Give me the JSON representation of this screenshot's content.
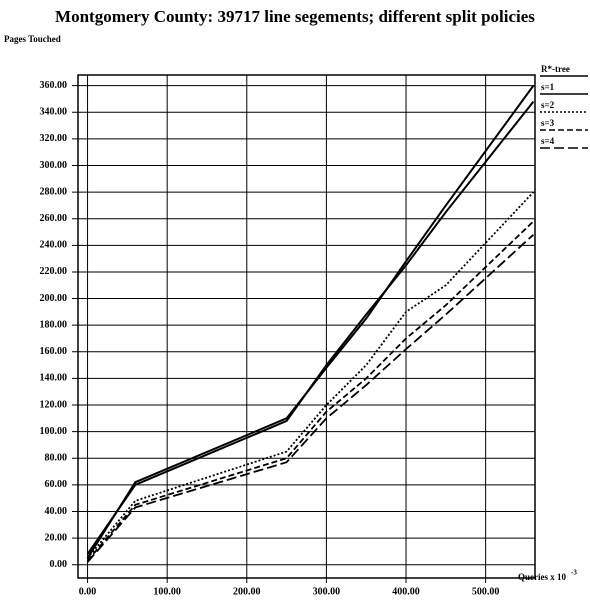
{
  "chart_data": {
    "type": "line",
    "title": "Montgomery County: 39717 line segements; different split policies",
    "ylabel": "Pages Touched",
    "xlabel": "Queries x 10",
    "xlabel_exp": "-3",
    "x": [
      0,
      60,
      250,
      300,
      350,
      400,
      450,
      560
    ],
    "series": [
      {
        "name": "R*-tree",
        "color": "#000000",
        "style": "solid",
        "values": [
          5,
          62,
          110,
          148,
          185,
          228,
          270,
          360
        ]
      },
      {
        "name": "s=1",
        "color": "#000000",
        "style": "solid",
        "values": [
          8,
          60,
          108,
          150,
          188,
          225,
          265,
          348
        ]
      },
      {
        "name": "s=2",
        "color": "#000000",
        "style": "dotted",
        "values": [
          5,
          48,
          85,
          120,
          150,
          190,
          210,
          280
        ]
      },
      {
        "name": "s=3",
        "color": "#000000",
        "style": "dashed",
        "values": [
          3,
          45,
          80,
          115,
          140,
          170,
          195,
          258
        ]
      },
      {
        "name": "s=4",
        "color": "#000000",
        "style": "longdash",
        "values": [
          2,
          43,
          77,
          110,
          135,
          162,
          188,
          248
        ]
      }
    ],
    "xlim": [
      -12,
      562
    ],
    "ylim": [
      -10,
      368
    ],
    "xticks": [
      {
        "value": 0,
        "label": "0.00"
      },
      {
        "value": 100,
        "label": "100.00"
      },
      {
        "value": 200,
        "label": "200.00"
      },
      {
        "value": 300,
        "label": "300.00"
      },
      {
        "value": 400,
        "label": "400.00"
      },
      {
        "value": 500,
        "label": "500.00"
      }
    ],
    "yticks": [
      {
        "value": 0,
        "label": "0.00"
      },
      {
        "value": 20,
        "label": "20.00"
      },
      {
        "value": 40,
        "label": "40.00"
      },
      {
        "value": 60,
        "label": "60.00"
      },
      {
        "value": 80,
        "label": "80.00"
      },
      {
        "value": 100,
        "label": "100.00"
      },
      {
        "value": 120,
        "label": "120.00"
      },
      {
        "value": 140,
        "label": "140.00"
      },
      {
        "value": 160,
        "label": "160.00"
      },
      {
        "value": 180,
        "label": "180.00"
      },
      {
        "value": 200,
        "label": "200.00"
      },
      {
        "value": 220,
        "label": "220.00"
      },
      {
        "value": 240,
        "label": "240.00"
      },
      {
        "value": 260,
        "label": "260.00"
      },
      {
        "value": 280,
        "label": "280.00"
      },
      {
        "value": 300,
        "label": "300.00"
      },
      {
        "value": 320,
        "label": "320.00"
      },
      {
        "value": 340,
        "label": "340.00"
      },
      {
        "value": 360,
        "label": "360.00"
      }
    ],
    "grid": true
  }
}
